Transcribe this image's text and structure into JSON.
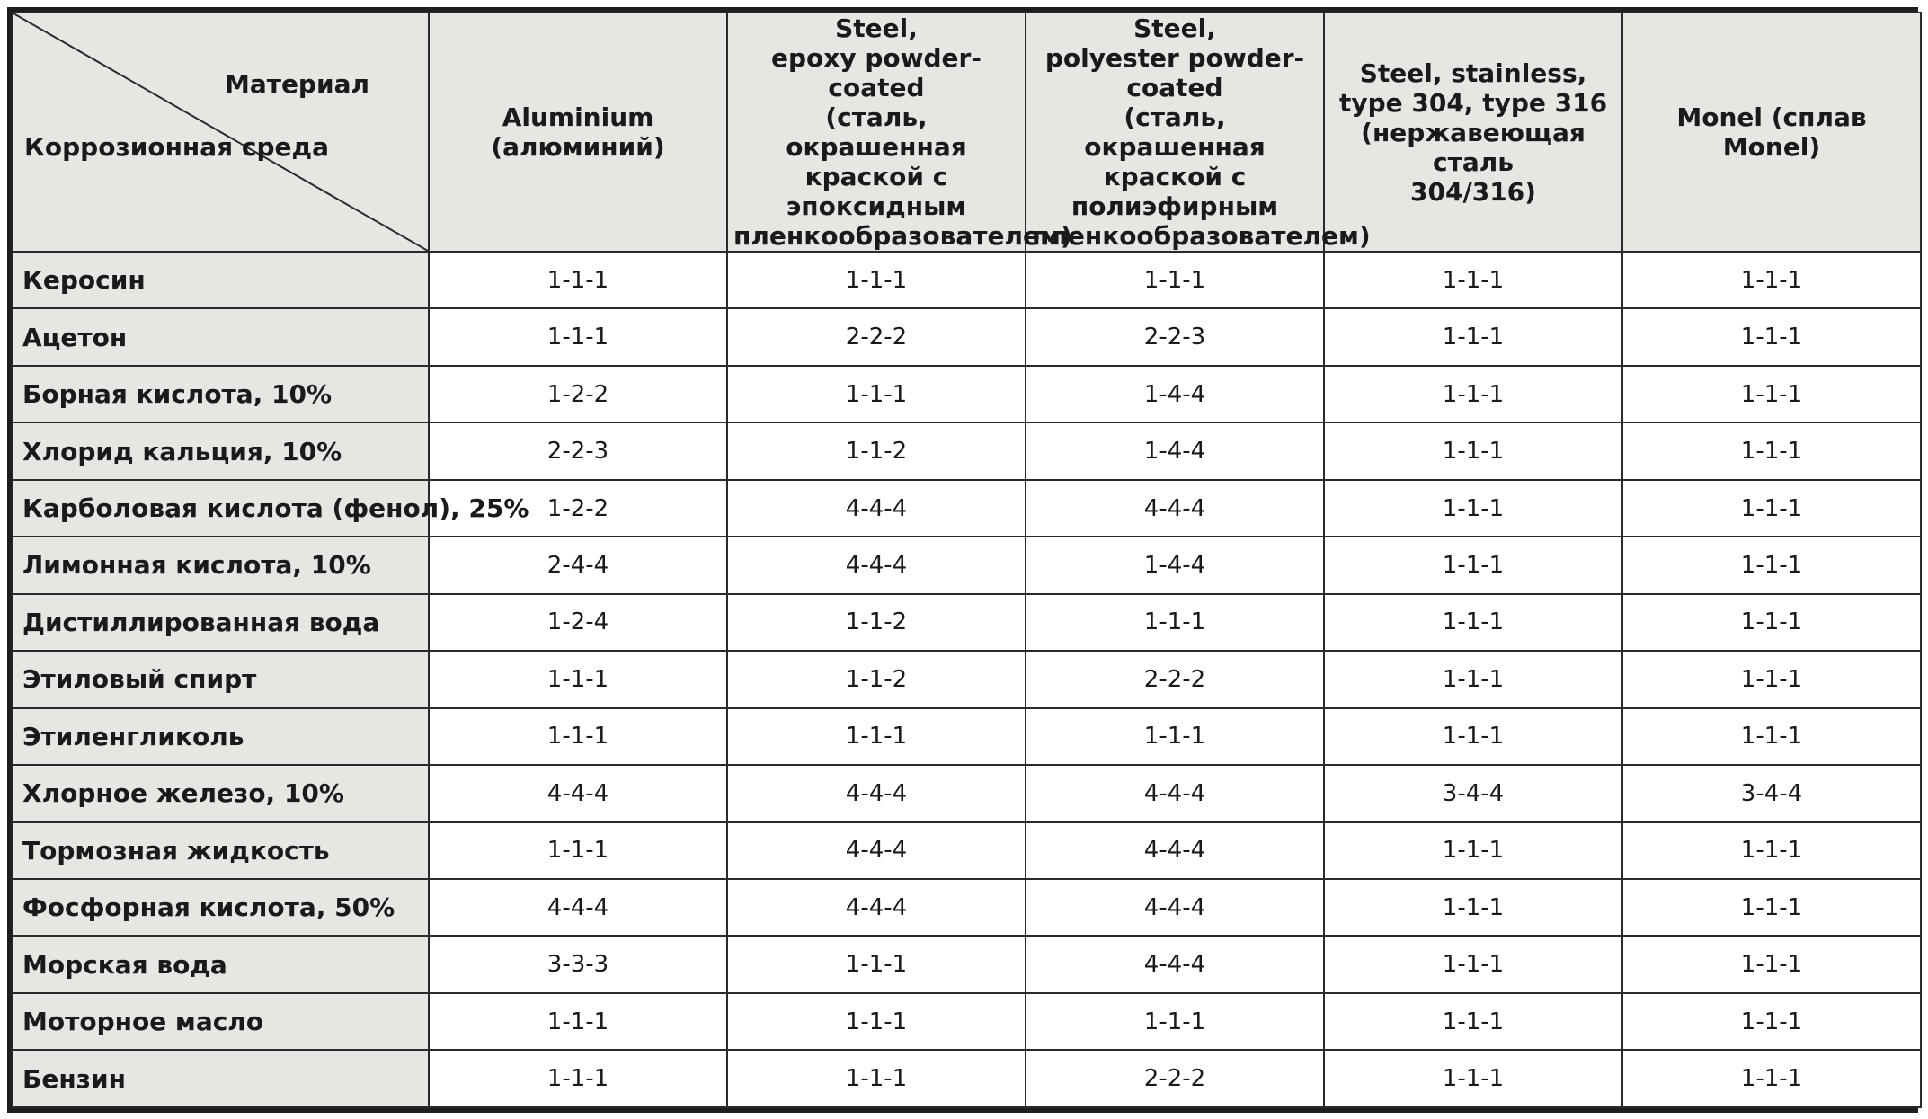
{
  "table": {
    "corner": {
      "material_label": "Материал",
      "medium_label": "Коррозионная среда"
    },
    "columns": [
      "Aluminium (алюминий)",
      "Steel,\nepoxy powder-coated\n(сталь, окрашенная\nкраской с эпоксидным\nпленкообразователем)",
      "Steel,\npolyester powder-coated\n(сталь, окрашенная\nкраской с полиэфирным\nпленкообразователем)",
      "Steel, stainless,\ntype 304, type 316\n(нержавеющая сталь\n304/316)",
      "Monel (сплав Monel)"
    ],
    "rows": [
      {
        "medium": "Керосин",
        "values": [
          "1-1-1",
          "1-1-1",
          "1-1-1",
          "1-1-1",
          "1-1-1"
        ]
      },
      {
        "medium": "Ацетон",
        "values": [
          "1-1-1",
          "2-2-2",
          "2-2-3",
          "1-1-1",
          "1-1-1"
        ]
      },
      {
        "medium": "Борная кислота, 10%",
        "values": [
          "1-2-2",
          "1-1-1",
          "1-4-4",
          "1-1-1",
          "1-1-1"
        ]
      },
      {
        "medium": "Хлорид кальция, 10%",
        "values": [
          "2-2-3",
          "1-1-2",
          "1-4-4",
          "1-1-1",
          "1-1-1"
        ]
      },
      {
        "medium": "Карболовая кислота (фенол), 25%",
        "values": [
          "1-2-2",
          "4-4-4",
          "4-4-4",
          "1-1-1",
          "1-1-1"
        ]
      },
      {
        "medium": "Лимонная кислота, 10%",
        "values": [
          "2-4-4",
          "4-4-4",
          "1-4-4",
          "1-1-1",
          "1-1-1"
        ]
      },
      {
        "medium": "Дистиллированная вода",
        "values": [
          "1-2-4",
          "1-1-2",
          "1-1-1",
          "1-1-1",
          "1-1-1"
        ]
      },
      {
        "medium": "Этиловый спирт",
        "values": [
          "1-1-1",
          "1-1-2",
          "2-2-2",
          "1-1-1",
          "1-1-1"
        ]
      },
      {
        "medium": "Этиленгликоль",
        "values": [
          "1-1-1",
          "1-1-1",
          "1-1-1",
          "1-1-1",
          "1-1-1"
        ]
      },
      {
        "medium": "Хлорное железо, 10%",
        "values": [
          "4-4-4",
          "4-4-4",
          "4-4-4",
          "3-4-4",
          "3-4-4"
        ]
      },
      {
        "medium": "Тормозная жидкость",
        "values": [
          "1-1-1",
          "4-4-4",
          "4-4-4",
          "1-1-1",
          "1-1-1"
        ]
      },
      {
        "medium": "Фосфорная кислота, 50%",
        "values": [
          "4-4-4",
          "4-4-4",
          "4-4-4",
          "1-1-1",
          "1-1-1"
        ]
      },
      {
        "medium": "Морская вода",
        "values": [
          "3-3-3",
          "1-1-1",
          "4-4-4",
          "1-1-1",
          "1-1-1"
        ]
      },
      {
        "medium": "Моторное масло",
        "values": [
          "1-1-1",
          "1-1-1",
          "1-1-1",
          "1-1-1",
          "1-1-1"
        ]
      },
      {
        "medium": "Бензин",
        "values": [
          "1-1-1",
          "1-1-1",
          "2-2-2",
          "1-1-1",
          "1-1-1"
        ]
      }
    ]
  },
  "colors": {
    "header_bg": "#e6e7e3",
    "cell_bg": "#ffffff",
    "border": "#2a2a2a"
  }
}
